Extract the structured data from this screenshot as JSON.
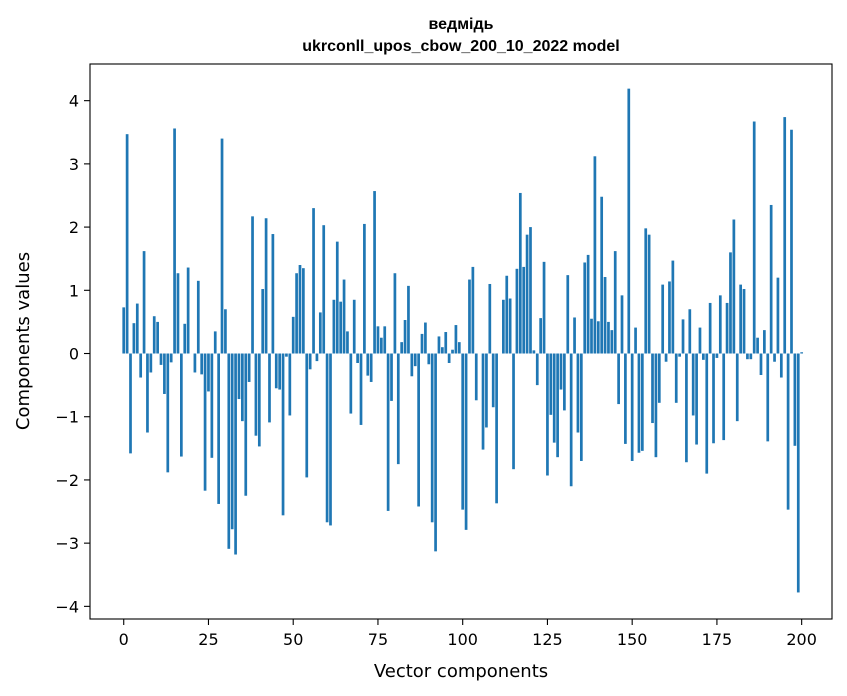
{
  "chart_data": {
    "type": "bar",
    "title": [
      "ведмідь",
      "ukrconll_upos_cbow_200_10_2022 model"
    ],
    "xlabel": "Vector components",
    "ylabel": "Components values",
    "xlim": [
      -9.95,
      208.95
    ],
    "ylim": [
      -4.2,
      4.58
    ],
    "xticks": [
      0,
      25,
      50,
      75,
      100,
      125,
      150,
      175,
      200
    ],
    "yticks": [
      -4,
      -3,
      -2,
      -1,
      0,
      1,
      2,
      3,
      4
    ],
    "ytick_labels": [
      "−4",
      "−3",
      "−2",
      "−1",
      "0",
      "1",
      "2",
      "3",
      "4"
    ],
    "bar_color": "#1f77b4",
    "grid": false,
    "values": [
      0.73,
      3.47,
      -1.58,
      0.48,
      0.79,
      -0.38,
      1.62,
      -1.25,
      -0.3,
      0.59,
      0.5,
      -0.18,
      -0.64,
      -1.88,
      -0.14,
      3.56,
      1.27,
      -1.63,
      0.47,
      1.36,
      0.0,
      -0.3,
      1.15,
      -0.33,
      -2.17,
      -0.6,
      -1.65,
      0.35,
      -2.38,
      3.4,
      0.7,
      -3.09,
      -2.78,
      -3.18,
      -0.72,
      -1.07,
      -2.25,
      -0.45,
      2.17,
      -1.3,
      -1.47,
      1.02,
      2.14,
      -1.09,
      1.89,
      -0.55,
      -0.57,
      -2.56,
      -0.05,
      -0.98,
      0.58,
      1.27,
      1.4,
      1.35,
      -1.96,
      -0.25,
      2.3,
      -0.12,
      0.65,
      2.03,
      -2.67,
      -2.72,
      0.85,
      1.77,
      0.82,
      1.17,
      0.35,
      -0.95,
      0.85,
      -0.15,
      -1.13,
      2.05,
      -0.35,
      -0.45,
      2.57,
      0.43,
      0.25,
      0.43,
      -2.49,
      -0.75,
      1.27,
      -1.75,
      0.18,
      0.53,
      1.07,
      -0.36,
      -0.2,
      -2.42,
      0.31,
      0.49,
      -0.17,
      -2.67,
      -3.13,
      0.27,
      0.1,
      0.34,
      -0.15,
      0.06,
      0.45,
      0.18,
      -2.47,
      -2.79,
      1.17,
      1.37,
      -0.74,
      0.0,
      -1.52,
      -1.17,
      1.1,
      -0.85,
      -2.37,
      0.0,
      0.85,
      1.23,
      0.87,
      -1.83,
      1.34,
      2.54,
      1.37,
      1.88,
      2.0,
      0.05,
      -0.5,
      0.56,
      1.45,
      -1.93,
      -0.97,
      -1.41,
      -1.64,
      -0.57,
      -0.9,
      1.24,
      -2.1,
      0.57,
      -1.25,
      -1.7,
      1.44,
      1.56,
      0.55,
      3.12,
      0.51,
      2.48,
      1.21,
      0.5,
      0.37,
      1.62,
      -0.8,
      0.92,
      -1.43,
      4.19,
      -1.7,
      0.41,
      -1.57,
      -1.54,
      1.98,
      1.88,
      -1.1,
      -1.64,
      -0.78,
      1.09,
      -0.13,
      1.14,
      1.47,
      -0.78,
      -0.05,
      0.54,
      -1.72,
      0.7,
      -0.98,
      -1.44,
      0.41,
      -0.1,
      -1.9,
      0.8,
      -1.42,
      -0.07,
      0.92,
      -1.37,
      0.8,
      1.6,
      2.12,
      -1.07,
      1.09,
      1.02,
      -0.09,
      -0.09,
      3.67,
      0.25,
      -0.34,
      0.37,
      -1.39,
      2.35,
      -0.13,
      1.2,
      -0.38,
      3.74,
      -2.47,
      3.54,
      -1.46,
      -3.78,
      0.02
    ]
  }
}
